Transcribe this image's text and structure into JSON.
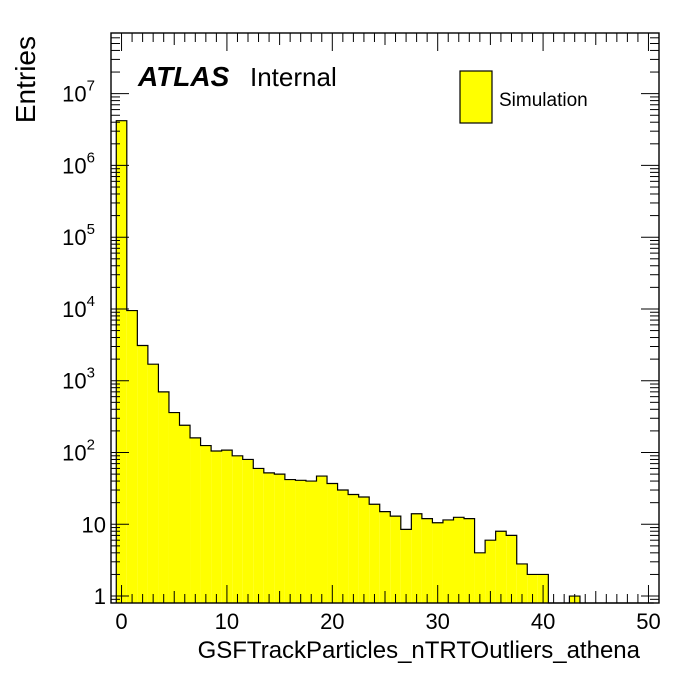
{
  "chart_data": {
    "type": "bar",
    "subtype": "histogram",
    "title": "",
    "xlabel": "GSFTrackParticles_nTRTOutliers_athena",
    "ylabel": "Entries",
    "atlas_label": {
      "experiment": "ATLAS",
      "status": "Internal"
    },
    "legend": {
      "position": "top-right",
      "entries": [
        {
          "label": "Simulation",
          "color": "#ffff00"
        }
      ]
    },
    "xlim": [
      -1,
      51
    ],
    "ylim": [
      0.8,
      70000000
    ],
    "y_scale": "log",
    "x_ticks": [
      0,
      10,
      20,
      30,
      40,
      50
    ],
    "x_tick_labels": [
      "0",
      "10",
      "20",
      "30",
      "40",
      "50"
    ],
    "y_ticks": [
      {
        "value": 1,
        "base": "1",
        "exp": ""
      },
      {
        "value": 10,
        "base": "10",
        "exp": ""
      },
      {
        "value": 100,
        "base": "10",
        "exp": "2"
      },
      {
        "value": 1000,
        "base": "10",
        "exp": "3"
      },
      {
        "value": 10000,
        "base": "10",
        "exp": "4"
      },
      {
        "value": 100000,
        "base": "10",
        "exp": "5"
      },
      {
        "value": 1000000,
        "base": "10",
        "exp": "6"
      },
      {
        "value": 10000000,
        "base": "10",
        "exp": "7"
      }
    ],
    "bin_start": -0.5,
    "bin_width": 1,
    "fill_color": "#ffff00",
    "line_color": "#000000",
    "values": [
      4200000,
      9500,
      3100,
      1700,
      700,
      360,
      240,
      160,
      125,
      105,
      108,
      90,
      80,
      60,
      52,
      50,
      42,
      41,
      40,
      47,
      37,
      30,
      26,
      24,
      19,
      15,
      13,
      8.5,
      14,
      12,
      10.5,
      11.5,
      12.5,
      12,
      4,
      6,
      8,
      7,
      2.8,
      2,
      2,
      0,
      0,
      1,
      0,
      0,
      0,
      0,
      0,
      0,
      0
    ]
  }
}
